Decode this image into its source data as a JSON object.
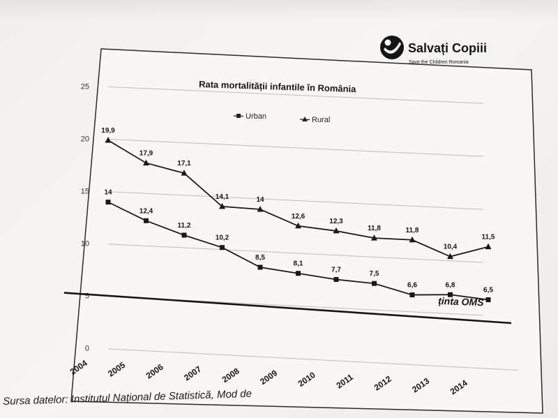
{
  "logo": {
    "name": "Salvați Copiii",
    "tagline": "Save the Children Romania"
  },
  "caption": "Sursa datelor: Institutul Național de Statistică, Mod de",
  "chart_data": {
    "type": "line",
    "title": "Rata mortalității infantile în România",
    "categories": [
      "2004",
      "2005",
      "2006",
      "2007",
      "2008",
      "2009",
      "2010",
      "2011",
      "2012",
      "2013",
      "2014"
    ],
    "ylim": [
      0,
      25
    ],
    "yticks": [
      0,
      5,
      10,
      15,
      20,
      25
    ],
    "grid": true,
    "legend_position": "top",
    "series": [
      {
        "name": "Urban",
        "marker": "square",
        "values": [
          14,
          12.4,
          11.2,
          10.2,
          8.5,
          8.1,
          7.7,
          7.5,
          6.6,
          6.8,
          6.5
        ],
        "labels": [
          "14",
          "12,4",
          "11,2",
          "10,2",
          "8,5",
          "8,1",
          "7,7",
          "7,5",
          "6,6",
          "6,8",
          "6,5"
        ]
      },
      {
        "name": "Rural",
        "marker": "triangle",
        "values": [
          19.9,
          17.9,
          17.1,
          14.1,
          14,
          12.6,
          12.3,
          11.8,
          11.8,
          10.4,
          11.5
        ],
        "labels": [
          "19,9",
          "17,9",
          "17,1",
          "14,1",
          "14",
          "12,6",
          "12,3",
          "11,8",
          "11,8",
          "10,4",
          "11,5"
        ]
      }
    ],
    "target_line": {
      "label": "ținta OMS",
      "value": 5
    }
  }
}
